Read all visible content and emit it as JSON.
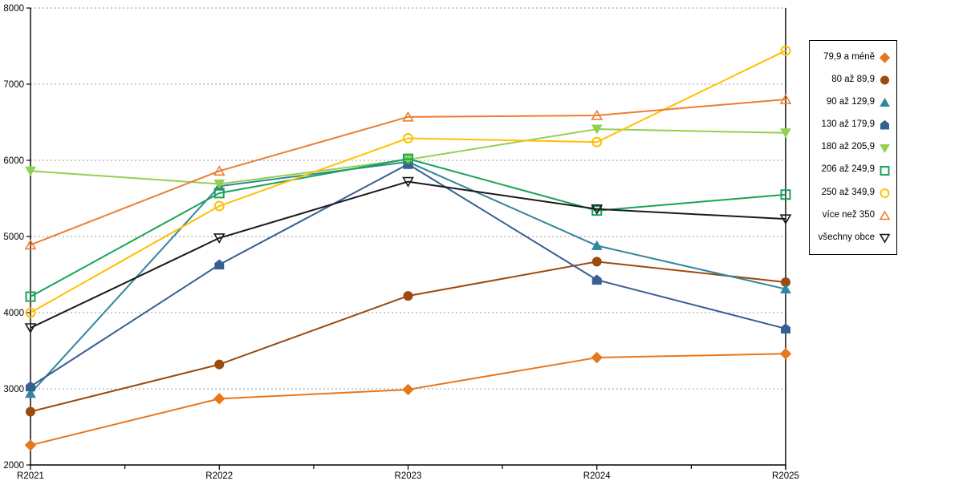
{
  "chart_data": {
    "type": "line",
    "title": "",
    "xlabel": "",
    "ylabel": "",
    "x_categories": [
      "R2021",
      "R2022",
      "R2023",
      "R2024",
      "R2025"
    ],
    "y_axis": {
      "min": 2000,
      "max": 8000,
      "step": 1000,
      "tick_labels": [
        "2000",
        "3000",
        "4000",
        "5000",
        "6000",
        "7000",
        "8000"
      ]
    },
    "grid": "horizontal-dotted",
    "legend_position": "right",
    "series": [
      {
        "name": "79,9 a méně",
        "color": "#E8761B",
        "marker": "diamond",
        "filled": true,
        "values": [
          2260,
          2870,
          2990,
          3410,
          3460
        ]
      },
      {
        "name": "80 až 89,9",
        "color": "#9C4A0E",
        "marker": "circle",
        "filled": true,
        "values": [
          2700,
          3320,
          4220,
          4670,
          4400
        ]
      },
      {
        "name": "90 až 129,9",
        "color": "#31859C",
        "marker": "triangle-up",
        "filled": true,
        "values": [
          2940,
          5660,
          5980,
          4880,
          4310
        ]
      },
      {
        "name": "130 až 179,9",
        "color": "#376092",
        "marker": "pentagon",
        "filled": true,
        "values": [
          3030,
          4630,
          5950,
          4430,
          3790
        ]
      },
      {
        "name": "180 až 205,9",
        "color": "#92D050",
        "marker": "triangle-down",
        "filled": true,
        "values": [
          5860,
          5690,
          6010,
          6410,
          6360
        ]
      },
      {
        "name": "206 až 249,9",
        "color": "#17A457",
        "marker": "square",
        "filled": false,
        "values": [
          4210,
          5570,
          6020,
          5340,
          5550
        ]
      },
      {
        "name": "250 až 349,9",
        "color": "#FFC000",
        "marker": "circle",
        "filled": false,
        "values": [
          4000,
          5400,
          6290,
          6240,
          7440
        ]
      },
      {
        "name": "více než 350",
        "color": "#ED7D31",
        "marker": "triangle-up",
        "filled": false,
        "values": [
          4890,
          5860,
          6570,
          6590,
          6800
        ]
      },
      {
        "name": "všechny obce",
        "color": "#1A1A1A",
        "marker": "triangle-down",
        "filled": false,
        "values": [
          3800,
          4980,
          5720,
          5360,
          5230
        ]
      }
    ]
  },
  "colors": {
    "grid": "#AFAFAF",
    "axis": "#000000",
    "background": "#FFFFFF",
    "legend_border": "#000000"
  }
}
